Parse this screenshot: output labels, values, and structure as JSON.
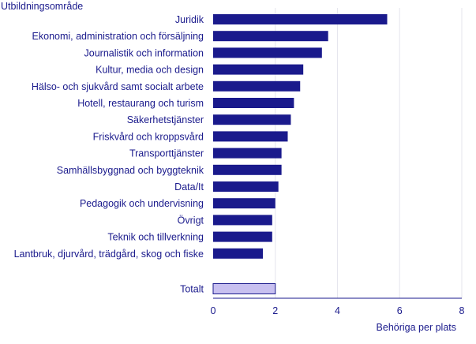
{
  "chart_data": {
    "type": "bar",
    "orientation": "horizontal",
    "ylabel": "Utbildningsområde",
    "xlabel": "Behöriga per plats",
    "xlim": [
      0,
      8
    ],
    "x_ticks": [
      0,
      2,
      4,
      6,
      8
    ],
    "grid": true,
    "categories": [
      "Juridik",
      "Ekonomi, administration och försäljning",
      "Journalistik och information",
      "Kultur, media och design",
      "Hälso- och sjukvård samt socialt arbete",
      "Hotell, restaurang och turism",
      "Säkerhetstjänster",
      "Friskvård och kroppsvård",
      "Transporttjänster",
      "Samhällsbyggnad och byggteknik",
      "Data/It",
      "Pedagogik och undervisning",
      "Övrigt",
      "Teknik och tillverkning",
      "Lantbruk, djurvård, trädgård, skog och fiske",
      "Totalt"
    ],
    "values": [
      5.6,
      3.7,
      3.5,
      2.9,
      2.8,
      2.6,
      2.5,
      2.4,
      2.2,
      2.2,
      2.1,
      2.0,
      1.9,
      1.9,
      1.6,
      2.0
    ],
    "colors": {
      "bar": "#1a1a8c",
      "total_bar": "#c8c0f0",
      "text": "#1a1a8c"
    }
  }
}
